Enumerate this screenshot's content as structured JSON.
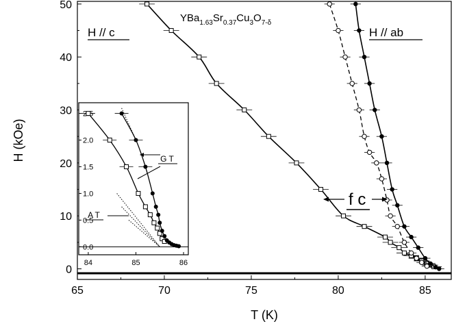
{
  "chart_data": [
    {
      "type": "scatter",
      "title": "",
      "xlabel": "T (K)",
      "ylabel": "H (kOe)",
      "xlim": [
        65,
        86.5
      ],
      "ylim": [
        -2,
        50.5
      ],
      "xticks": [
        65,
        70,
        75,
        80,
        85
      ],
      "yticks": [
        0,
        10,
        20,
        30,
        40,
        50
      ],
      "formula": {
        "prefix": "YBa",
        "sub1": "1.63",
        "mid1": "Sr",
        "sub2": "0.37",
        "mid2": "Cu",
        "sub3": "3",
        "mid3": "O",
        "sub4": "7-δ"
      },
      "annotations": {
        "h_c": "H // c",
        "h_ab": "H // ab",
        "fc": "f c"
      },
      "series": [
        {
          "marker": "open-square",
          "line": "solid",
          "xerr": 0.45,
          "x": [
            69.0,
            70.4,
            72.0,
            73.0,
            74.6,
            76.0,
            77.6,
            79.0,
            80.3,
            81.5,
            82.7,
            83.0,
            83.5,
            83.8,
            84.2,
            84.5,
            84.8,
            85.1,
            85.3,
            85.5
          ],
          "y": [
            50,
            45,
            40,
            35,
            30,
            25,
            20,
            15,
            10,
            8,
            6,
            5,
            4,
            3,
            2.5,
            2,
            1.5,
            1,
            0.7,
            0.4
          ]
        },
        {
          "marker": "open-circle",
          "line": "dashed",
          "xerr": 0.3,
          "x": [
            79.5,
            80.0,
            80.4,
            80.8,
            81.2,
            81.5,
            81.8,
            82.2,
            82.5,
            82.8,
            83.0,
            83.4,
            83.8,
            84.2,
            84.5,
            84.8,
            85.1
          ],
          "y": [
            50,
            45,
            40,
            35,
            30,
            25,
            22,
            20,
            17,
            13,
            10,
            8,
            5,
            3,
            2,
            1.2,
            0.5
          ]
        },
        {
          "marker": "filled-circle",
          "line": "solid",
          "xerr": 0.3,
          "x": [
            81.0,
            81.2,
            81.5,
            81.8,
            82.1,
            82.5,
            82.8,
            83.1,
            83.4,
            83.8,
            84.2,
            84.6,
            85.0,
            85.3,
            85.6,
            85.8
          ],
          "y": [
            50,
            45,
            40,
            35,
            30,
            25,
            20,
            15,
            12,
            8,
            6,
            4,
            2,
            1,
            0.3,
            0
          ]
        }
      ]
    },
    {
      "type": "scatter",
      "title": "",
      "xlabel": "",
      "ylabel": "",
      "xlim": [
        83.8,
        86.1
      ],
      "ylim": [
        -0.15,
        2.7
      ],
      "xticks": [
        84,
        85,
        86
      ],
      "yticks": [
        0.0,
        0.5,
        1.0,
        1.5,
        2.0,
        2.5
      ],
      "annotations": {
        "gt": "G T",
        "at": "A T"
      },
      "series": [
        {
          "marker": "open-square",
          "line": "solid",
          "x": [
            84.0,
            84.45,
            84.8,
            85.05,
            85.2,
            85.3,
            85.38,
            85.45,
            85.5,
            85.55,
            85.6
          ],
          "y": [
            2.5,
            2.0,
            1.5,
            1.0,
            0.75,
            0.6,
            0.45,
            0.35,
            0.25,
            0.15,
            0.1
          ]
        },
        {
          "marker": "filled-circle",
          "line": "solid",
          "x": [
            84.7,
            85.0,
            85.2,
            85.35,
            85.42,
            85.47,
            85.5,
            85.55,
            85.6,
            85.65,
            85.7,
            85.75,
            85.8,
            85.85,
            85.9
          ],
          "y": [
            2.5,
            2.0,
            1.5,
            1.0,
            0.75,
            0.6,
            0.45,
            0.3,
            0.2,
            0.12,
            0.08,
            0.05,
            0.03,
            0.02,
            0.01
          ]
        }
      ],
      "at_lines": [
        {
          "x": [
            84.6,
            85.5
          ],
          "y": [
            1.0,
            0.0
          ]
        },
        {
          "x": [
            84.7,
            85.5
          ],
          "y": [
            0.75,
            0.0
          ]
        },
        {
          "x": [
            84.85,
            85.5
          ],
          "y": [
            0.5,
            0.0
          ]
        }
      ],
      "gt_dotted": {
        "x": [
          84.7,
          85.0
        ],
        "y": [
          2.6,
          2.0
        ]
      }
    }
  ]
}
